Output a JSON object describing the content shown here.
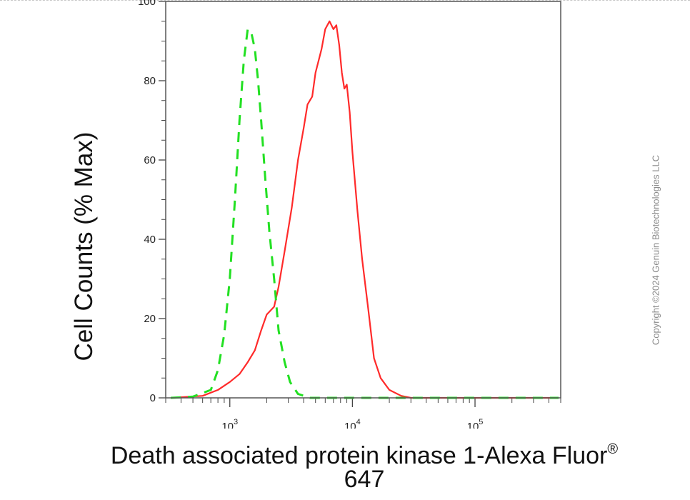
{
  "chart_data": {
    "type": "line",
    "ylabel": "Cell Counts (% Max)",
    "xlabel_line1": "Death associated protein kinase 1-Alexa Fluor",
    "xlabel_sup": "®",
    "xlabel_line2": "647",
    "xscale": "log",
    "xlim": [
      300,
      500000
    ],
    "ylim": [
      0,
      100
    ],
    "yticks": [
      0,
      20,
      40,
      60,
      80,
      100
    ],
    "ytick_labels": [
      "0",
      "20",
      "40",
      "60",
      "80",
      "100"
    ],
    "xticks": [
      1000,
      10000,
      100000
    ],
    "xtick_bases": [
      "10",
      "10",
      "10"
    ],
    "xtick_exponents": [
      "3",
      "4",
      "5"
    ],
    "grid": false,
    "series": [
      {
        "color": "#ff2a2a",
        "style": "solid",
        "points": [
          [
            330,
            0
          ],
          [
            600,
            0.5
          ],
          [
            800,
            2
          ],
          [
            1000,
            4
          ],
          [
            1200,
            6
          ],
          [
            1400,
            9
          ],
          [
            1600,
            12
          ],
          [
            1800,
            17
          ],
          [
            2000,
            21
          ],
          [
            2300,
            23
          ],
          [
            2500,
            28
          ],
          [
            2800,
            37
          ],
          [
            3200,
            48
          ],
          [
            3600,
            60
          ],
          [
            4000,
            68
          ],
          [
            4300,
            74
          ],
          [
            4700,
            76
          ],
          [
            5000,
            82
          ],
          [
            5600,
            88
          ],
          [
            6000,
            93
          ],
          [
            6500,
            95
          ],
          [
            7000,
            93
          ],
          [
            7400,
            94
          ],
          [
            7800,
            89
          ],
          [
            8200,
            82
          ],
          [
            8600,
            78
          ],
          [
            9000,
            79
          ],
          [
            9500,
            72
          ],
          [
            10000,
            62
          ],
          [
            11000,
            47
          ],
          [
            12000,
            35
          ],
          [
            13500,
            22
          ],
          [
            15000,
            10
          ],
          [
            17000,
            5
          ],
          [
            20000,
            2
          ],
          [
            25000,
            0.5
          ],
          [
            30000,
            0
          ],
          [
            100000,
            0
          ],
          [
            480000,
            0
          ]
        ]
      },
      {
        "color": "#22e022",
        "style": "dashed",
        "points": [
          [
            330,
            0
          ],
          [
            500,
            0.3
          ],
          [
            700,
            2
          ],
          [
            800,
            7
          ],
          [
            900,
            16
          ],
          [
            1000,
            30
          ],
          [
            1100,
            50
          ],
          [
            1200,
            70
          ],
          [
            1300,
            85
          ],
          [
            1400,
            93
          ],
          [
            1500,
            92
          ],
          [
            1600,
            88
          ],
          [
            1700,
            80
          ],
          [
            1800,
            70
          ],
          [
            1950,
            55
          ],
          [
            2100,
            42
          ],
          [
            2300,
            30
          ],
          [
            2500,
            17
          ],
          [
            2800,
            9
          ],
          [
            3100,
            4
          ],
          [
            3600,
            1
          ],
          [
            4500,
            0
          ],
          [
            20000,
            0
          ],
          [
            480000,
            0
          ]
        ]
      }
    ]
  },
  "watermark": "Copyright ©2024 Genuin Biotechnologies LLC"
}
